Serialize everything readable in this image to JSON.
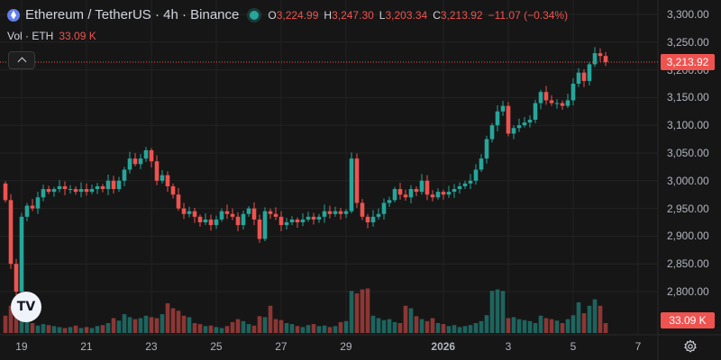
{
  "header": {
    "title": "Ethereum / TetherUS · 4h · Binance",
    "ohlc": [
      {
        "label": "O",
        "value": "3,224.99"
      },
      {
        "label": "H",
        "value": "3,247.30"
      },
      {
        "label": "L",
        "value": "3,203.34"
      },
      {
        "label": "C",
        "value": "3,213.92"
      }
    ],
    "change": "−11.07 (−0.34%)"
  },
  "volume_legend": {
    "label": "Vol · ETH",
    "value": "33.09 K"
  },
  "price_tag": "3,213.92",
  "volume_tag": "33.09 K",
  "logo_text": "TV",
  "colors": {
    "up": "#26a69a",
    "down": "#ef5350",
    "bg": "#161616"
  },
  "chart_data": {
    "type": "candlestick",
    "y_ticks": [
      "3,300.00",
      "3,250.00",
      "3,200.00",
      "3,150.00",
      "3,100.00",
      "3,050.00",
      "3,000.00",
      "2,950.00",
      "2,900.00",
      "2,850.00",
      "2,800.00"
    ],
    "y_tick_values": [
      3300,
      3250,
      3200,
      3150,
      3100,
      3050,
      3000,
      2950,
      2900,
      2850,
      2800
    ],
    "ylim": [
      2750,
      3310
    ],
    "x_ticks": [
      {
        "label": "19",
        "index": 3
      },
      {
        "label": "21",
        "index": 15
      },
      {
        "label": "23",
        "index": 27
      },
      {
        "label": "25",
        "index": 39
      },
      {
        "label": "27",
        "index": 51
      },
      {
        "label": "29",
        "index": 63
      },
      {
        "label": "2026",
        "index": 81
      },
      {
        "label": "3",
        "index": 93
      },
      {
        "label": "5",
        "index": 105
      },
      {
        "label": "7",
        "index": 117
      }
    ],
    "last_price": 3213.92,
    "closes": [
      2965,
      2850,
      2800,
      2935,
      2955,
      2950,
      2970,
      2985,
      2980,
      2985,
      2990,
      2985,
      2985,
      2980,
      2985,
      2980,
      2985,
      2990,
      2985,
      3000,
      2985,
      3000,
      3020,
      3040,
      3030,
      3040,
      3055,
      3035,
      3000,
      3010,
      2990,
      2975,
      2950,
      2940,
      2945,
      2935,
      2925,
      2930,
      2920,
      2930,
      2945,
      2940,
      2935,
      2920,
      2940,
      2950,
      2930,
      2895,
      2945,
      2940,
      2935,
      2920,
      2925,
      2930,
      2925,
      2930,
      2935,
      2930,
      2935,
      2945,
      2940,
      2945,
      2940,
      2945,
      3040,
      2960,
      2935,
      2925,
      2935,
      2940,
      2960,
      2965,
      2985,
      2975,
      2970,
      2985,
      2980,
      3000,
      2975,
      2970,
      2980,
      2975,
      2980,
      2985,
      2990,
      2995,
      3000,
      3020,
      3040,
      3075,
      3100,
      3125,
      3135,
      3085,
      3095,
      3100,
      3105,
      3110,
      3140,
      3160,
      3145,
      3140,
      3140,
      3135,
      3145,
      3175,
      3195,
      3180,
      3210,
      3230,
      3224.99,
      3213.92
    ],
    "volumes": [
      0.35,
      0.55,
      0.45,
      0.62,
      0.38,
      0.2,
      0.15,
      0.18,
      0.16,
      0.14,
      0.12,
      0.1,
      0.12,
      0.15,
      0.1,
      0.12,
      0.1,
      0.14,
      0.16,
      0.2,
      0.3,
      0.25,
      0.38,
      0.32,
      0.28,
      0.3,
      0.35,
      0.32,
      0.3,
      0.38,
      0.6,
      0.5,
      0.45,
      0.35,
      0.32,
      0.2,
      0.18,
      0.14,
      0.15,
      0.12,
      0.1,
      0.14,
      0.22,
      0.28,
      0.24,
      0.18,
      0.15,
      0.34,
      0.32,
      0.55,
      0.28,
      0.26,
      0.2,
      0.18,
      0.14,
      0.12,
      0.16,
      0.18,
      0.14,
      0.15,
      0.12,
      0.14,
      0.22,
      0.24,
      0.85,
      0.8,
      0.88,
      0.9,
      0.35,
      0.3,
      0.26,
      0.28,
      0.22,
      0.2,
      0.55,
      0.5,
      0.34,
      0.28,
      0.24,
      0.3,
      0.2,
      0.18,
      0.14,
      0.16,
      0.12,
      0.14,
      0.16,
      0.2,
      0.24,
      0.36,
      0.85,
      0.88,
      0.85,
      0.3,
      0.32,
      0.28,
      0.26,
      0.24,
      0.2,
      0.35,
      0.3,
      0.28,
      0.25,
      0.2,
      0.28,
      0.36,
      0.62,
      0.4,
      0.55,
      0.68,
      0.55,
      0.2
    ]
  }
}
